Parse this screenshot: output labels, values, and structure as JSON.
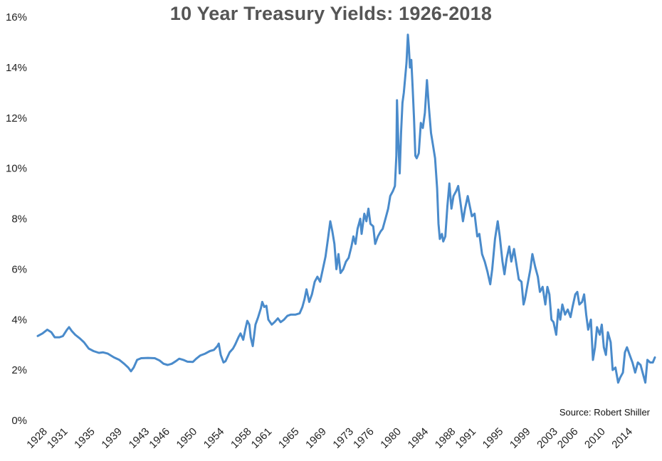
{
  "chart_data": {
    "type": "line",
    "title": "10 Year Treasury Yields: 1926-2018",
    "xlabel": "",
    "ylabel": "",
    "ylim": [
      0,
      16
    ],
    "xlim": [
      1927.3,
      2018
    ],
    "y_ticks": [
      "0%",
      "2%",
      "4%",
      "6%",
      "8%",
      "10%",
      "12%",
      "14%",
      "16%"
    ],
    "y_tick_values": [
      0,
      2,
      4,
      6,
      8,
      10,
      12,
      14,
      16
    ],
    "x_ticks": [
      "1928",
      "1931",
      "1935",
      "1939",
      "1943",
      "1946",
      "1950",
      "1954",
      "1958",
      "1961",
      "1965",
      "1969",
      "1973",
      "1976",
      "1980",
      "1984",
      "1988",
      "1991",
      "1995",
      "1999",
      "2003",
      "2006",
      "2010",
      "2014"
    ],
    "x_tick_values": [
      1928,
      1931,
      1935,
      1939,
      1943,
      1946,
      1950,
      1954,
      1958,
      1961,
      1965,
      1969,
      1973,
      1976,
      1980,
      1984,
      1988,
      1991,
      1995,
      1999,
      2003,
      2006,
      2010,
      2014
    ],
    "annotation": "Source: Robert Shiller",
    "grid": false,
    "line_color": "#4a8bcb",
    "series": [
      {
        "points": [
          [
            1927.3,
            3.35
          ],
          [
            1928.0,
            3.45
          ],
          [
            1928.7,
            3.6
          ],
          [
            1929.3,
            3.5
          ],
          [
            1929.8,
            3.3
          ],
          [
            1930.5,
            3.3
          ],
          [
            1931.0,
            3.35
          ],
          [
            1931.6,
            3.6
          ],
          [
            1931.9,
            3.7
          ],
          [
            1932.3,
            3.55
          ],
          [
            1932.8,
            3.4
          ],
          [
            1933.5,
            3.25
          ],
          [
            1934.1,
            3.1
          ],
          [
            1934.8,
            2.85
          ],
          [
            1935.5,
            2.75
          ],
          [
            1936.3,
            2.68
          ],
          [
            1936.9,
            2.7
          ],
          [
            1937.6,
            2.65
          ],
          [
            1938.5,
            2.5
          ],
          [
            1939.3,
            2.4
          ],
          [
            1940.0,
            2.25
          ],
          [
            1940.6,
            2.1
          ],
          [
            1941.0,
            1.95
          ],
          [
            1941.4,
            2.1
          ],
          [
            1941.9,
            2.4
          ],
          [
            1942.5,
            2.47
          ],
          [
            1943.5,
            2.48
          ],
          [
            1944.5,
            2.47
          ],
          [
            1945.2,
            2.38
          ],
          [
            1945.8,
            2.25
          ],
          [
            1946.4,
            2.2
          ],
          [
            1947.0,
            2.25
          ],
          [
            1947.6,
            2.35
          ],
          [
            1948.1,
            2.45
          ],
          [
            1948.7,
            2.4
          ],
          [
            1949.3,
            2.33
          ],
          [
            1950.1,
            2.32
          ],
          [
            1950.6,
            2.45
          ],
          [
            1951.2,
            2.58
          ],
          [
            1951.9,
            2.65
          ],
          [
            1952.6,
            2.75
          ],
          [
            1953.2,
            2.8
          ],
          [
            1953.7,
            2.95
          ],
          [
            1953.9,
            3.05
          ],
          [
            1954.2,
            2.6
          ],
          [
            1954.6,
            2.3
          ],
          [
            1954.9,
            2.35
          ],
          [
            1955.5,
            2.7
          ],
          [
            1956.0,
            2.85
          ],
          [
            1956.3,
            3.0
          ],
          [
            1956.8,
            3.3
          ],
          [
            1957.1,
            3.45
          ],
          [
            1957.5,
            3.2
          ],
          [
            1957.8,
            3.6
          ],
          [
            1958.1,
            3.95
          ],
          [
            1958.4,
            3.8
          ],
          [
            1958.6,
            3.3
          ],
          [
            1958.9,
            2.95
          ],
          [
            1959.3,
            3.8
          ],
          [
            1959.7,
            4.1
          ],
          [
            1960.1,
            4.45
          ],
          [
            1960.3,
            4.7
          ],
          [
            1960.6,
            4.5
          ],
          [
            1960.9,
            4.55
          ],
          [
            1961.2,
            4.0
          ],
          [
            1961.7,
            3.8
          ],
          [
            1962.1,
            3.9
          ],
          [
            1962.6,
            4.05
          ],
          [
            1963.0,
            3.9
          ],
          [
            1963.5,
            4.0
          ],
          [
            1964.0,
            4.15
          ],
          [
            1964.5,
            4.2
          ],
          [
            1965.2,
            4.2
          ],
          [
            1965.8,
            4.25
          ],
          [
            1966.2,
            4.5
          ],
          [
            1966.5,
            4.8
          ],
          [
            1966.8,
            5.2
          ],
          [
            1967.2,
            4.7
          ],
          [
            1967.6,
            5.0
          ],
          [
            1968.0,
            5.5
          ],
          [
            1968.4,
            5.7
          ],
          [
            1968.8,
            5.5
          ],
          [
            1969.2,
            6.0
          ],
          [
            1969.6,
            6.5
          ],
          [
            1970.0,
            7.3
          ],
          [
            1970.3,
            7.9
          ],
          [
            1970.6,
            7.5
          ],
          [
            1970.9,
            7.0
          ],
          [
            1971.2,
            6.0
          ],
          [
            1971.5,
            6.6
          ],
          [
            1971.8,
            5.85
          ],
          [
            1972.2,
            6.0
          ],
          [
            1972.6,
            6.3
          ],
          [
            1973.0,
            6.45
          ],
          [
            1973.4,
            6.9
          ],
          [
            1973.7,
            7.3
          ],
          [
            1974.0,
            7.0
          ],
          [
            1974.3,
            7.6
          ],
          [
            1974.7,
            8.0
          ],
          [
            1974.9,
            7.4
          ],
          [
            1975.3,
            8.2
          ],
          [
            1975.6,
            7.9
          ],
          [
            1975.9,
            8.4
          ],
          [
            1976.2,
            7.8
          ],
          [
            1976.6,
            7.7
          ],
          [
            1976.9,
            7.0
          ],
          [
            1977.3,
            7.3
          ],
          [
            1977.7,
            7.5
          ],
          [
            1978.0,
            7.6
          ],
          [
            1978.4,
            8.0
          ],
          [
            1978.8,
            8.4
          ],
          [
            1979.1,
            8.9
          ],
          [
            1979.5,
            9.1
          ],
          [
            1979.8,
            9.3
          ],
          [
            1980.0,
            10.5
          ],
          [
            1980.1,
            12.7
          ],
          [
            1980.3,
            11.0
          ],
          [
            1980.5,
            9.8
          ],
          [
            1980.7,
            11.4
          ],
          [
            1980.9,
            12.6
          ],
          [
            1981.1,
            13.0
          ],
          [
            1981.3,
            13.6
          ],
          [
            1981.5,
            14.2
          ],
          [
            1981.7,
            15.3
          ],
          [
            1981.85,
            14.8
          ],
          [
            1982.0,
            14.0
          ],
          [
            1982.2,
            14.3
          ],
          [
            1982.4,
            13.2
          ],
          [
            1982.6,
            12.0
          ],
          [
            1982.8,
            10.5
          ],
          [
            1983.0,
            10.4
          ],
          [
            1983.3,
            10.6
          ],
          [
            1983.6,
            11.8
          ],
          [
            1983.9,
            11.6
          ],
          [
            1984.2,
            12.2
          ],
          [
            1984.5,
            13.5
          ],
          [
            1984.8,
            12.4
          ],
          [
            1985.1,
            11.4
          ],
          [
            1985.4,
            10.9
          ],
          [
            1985.7,
            10.4
          ],
          [
            1986.0,
            9.2
          ],
          [
            1986.2,
            7.8
          ],
          [
            1986.4,
            7.2
          ],
          [
            1986.7,
            7.4
          ],
          [
            1986.9,
            7.1
          ],
          [
            1987.2,
            7.3
          ],
          [
            1987.5,
            8.5
          ],
          [
            1987.8,
            9.4
          ],
          [
            1988.1,
            8.4
          ],
          [
            1988.4,
            8.9
          ],
          [
            1988.8,
            9.1
          ],
          [
            1989.1,
            9.3
          ],
          [
            1989.4,
            8.7
          ],
          [
            1989.8,
            7.9
          ],
          [
            1990.1,
            8.4
          ],
          [
            1990.5,
            8.9
          ],
          [
            1990.8,
            8.5
          ],
          [
            1991.1,
            8.1
          ],
          [
            1991.5,
            8.2
          ],
          [
            1991.9,
            7.3
          ],
          [
            1992.2,
            7.4
          ],
          [
            1992.6,
            6.6
          ],
          [
            1993.0,
            6.3
          ],
          [
            1993.4,
            5.9
          ],
          [
            1993.8,
            5.4
          ],
          [
            1994.1,
            6.0
          ],
          [
            1994.5,
            7.2
          ],
          [
            1994.9,
            7.9
          ],
          [
            1995.2,
            7.3
          ],
          [
            1995.6,
            6.3
          ],
          [
            1995.9,
            5.8
          ],
          [
            1996.2,
            6.4
          ],
          [
            1996.6,
            6.9
          ],
          [
            1996.9,
            6.3
          ],
          [
            1997.3,
            6.8
          ],
          [
            1997.7,
            6.1
          ],
          [
            1998.0,
            5.6
          ],
          [
            1998.4,
            5.5
          ],
          [
            1998.7,
            4.6
          ],
          [
            1998.9,
            4.8
          ],
          [
            1999.3,
            5.4
          ],
          [
            1999.7,
            6.0
          ],
          [
            2000.0,
            6.6
          ],
          [
            2000.4,
            6.1
          ],
          [
            2000.8,
            5.7
          ],
          [
            2001.1,
            5.1
          ],
          [
            2001.5,
            5.3
          ],
          [
            2001.9,
            4.6
          ],
          [
            2002.2,
            5.3
          ],
          [
            2002.5,
            5.0
          ],
          [
            2002.8,
            4.0
          ],
          [
            2003.1,
            3.9
          ],
          [
            2003.5,
            3.4
          ],
          [
            2003.8,
            4.4
          ],
          [
            2004.1,
            4.0
          ],
          [
            2004.4,
            4.6
          ],
          [
            2004.8,
            4.2
          ],
          [
            2005.2,
            4.4
          ],
          [
            2005.6,
            4.1
          ],
          [
            2005.9,
            4.5
          ],
          [
            2006.3,
            5.0
          ],
          [
            2006.6,
            5.1
          ],
          [
            2006.9,
            4.6
          ],
          [
            2007.3,
            4.7
          ],
          [
            2007.6,
            5.0
          ],
          [
            2007.9,
            4.2
          ],
          [
            2008.2,
            3.6
          ],
          [
            2008.6,
            4.0
          ],
          [
            2008.9,
            2.4
          ],
          [
            2009.2,
            2.9
          ],
          [
            2009.5,
            3.7
          ],
          [
            2009.9,
            3.4
          ],
          [
            2010.2,
            3.8
          ],
          [
            2010.5,
            2.9
          ],
          [
            2010.8,
            2.6
          ],
          [
            2011.1,
            3.5
          ],
          [
            2011.5,
            3.1
          ],
          [
            2011.8,
            2.0
          ],
          [
            2012.2,
            2.1
          ],
          [
            2012.6,
            1.5
          ],
          [
            2012.9,
            1.7
          ],
          [
            2013.3,
            1.9
          ],
          [
            2013.6,
            2.7
          ],
          [
            2013.9,
            2.9
          ],
          [
            2014.3,
            2.6
          ],
          [
            2014.7,
            2.3
          ],
          [
            2015.1,
            1.9
          ],
          [
            2015.5,
            2.3
          ],
          [
            2015.9,
            2.2
          ],
          [
            2016.3,
            1.8
          ],
          [
            2016.6,
            1.5
          ],
          [
            2016.9,
            2.4
          ],
          [
            2017.3,
            2.3
          ],
          [
            2017.7,
            2.3
          ],
          [
            2018.0,
            2.5
          ]
        ]
      }
    ]
  }
}
